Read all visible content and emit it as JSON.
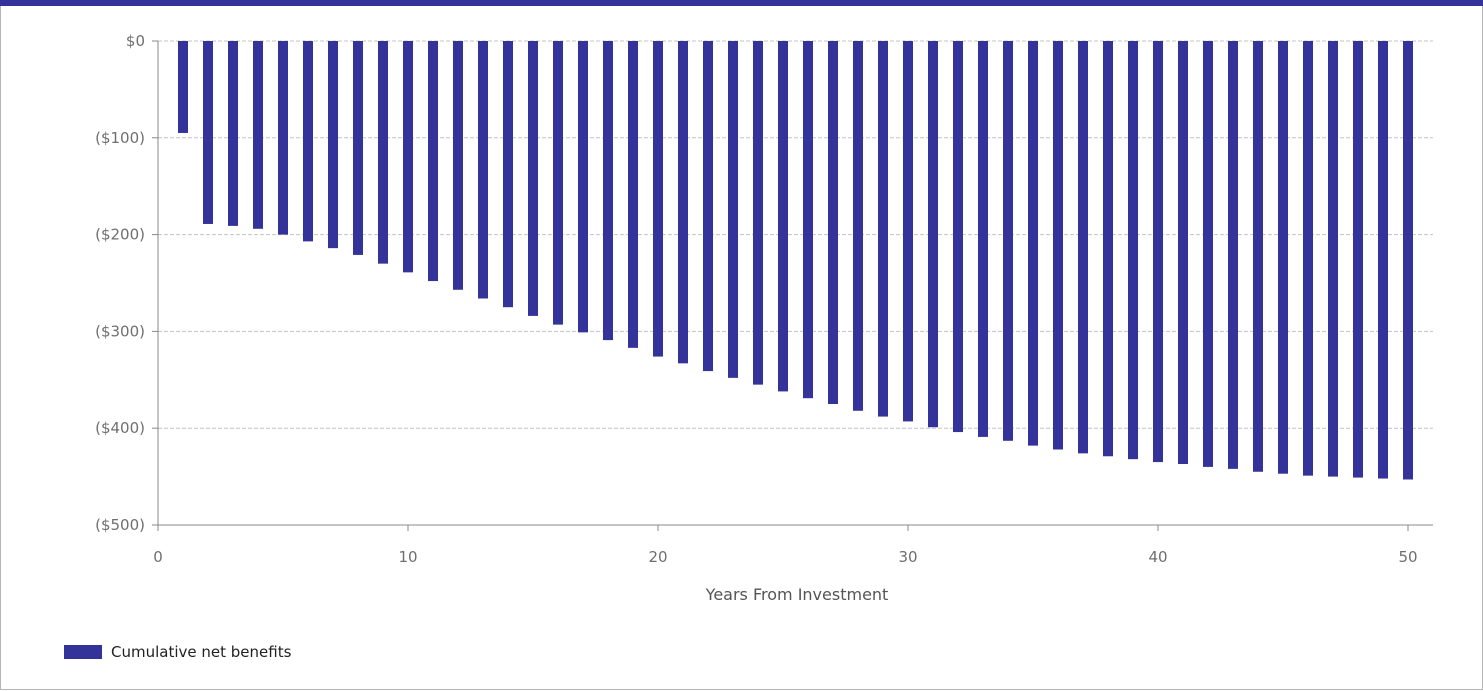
{
  "chart_data": {
    "type": "bar",
    "xlabel": "Years From Investment",
    "ylabel": "",
    "xlim": [
      0,
      51
    ],
    "ylim": [
      -500,
      0
    ],
    "x_ticks": [
      0,
      10,
      20,
      30,
      40,
      50
    ],
    "x_tick_labels": [
      "0",
      "10",
      "20",
      "30",
      "40",
      "50"
    ],
    "y_ticks": [
      0,
      -100,
      -200,
      -300,
      -400,
      -500
    ],
    "y_tick_labels": [
      "$0",
      "($100)",
      "($200)",
      "($300)",
      "($400)",
      "($500)"
    ],
    "grid": "horizontal-dashed",
    "legend_position": "bottom-left",
    "colors": {
      "bar": "#33339a",
      "axis": "#888888",
      "grid": "#c4c4c4",
      "top_bar": "#33339a"
    },
    "series": [
      {
        "name": "Cumulative net benefits",
        "x": [
          1,
          2,
          3,
          4,
          5,
          6,
          7,
          8,
          9,
          10,
          11,
          12,
          13,
          14,
          15,
          16,
          17,
          18,
          19,
          20,
          21,
          22,
          23,
          24,
          25,
          26,
          27,
          28,
          29,
          30,
          31,
          32,
          33,
          34,
          35,
          36,
          37,
          38,
          39,
          40,
          41,
          42,
          43,
          44,
          45,
          46,
          47,
          48,
          49,
          50
        ],
        "values": [
          -95,
          -189,
          -191,
          -194,
          -200,
          -207,
          -214,
          -221,
          -230,
          -239,
          -248,
          -257,
          -266,
          -275,
          -284,
          -293,
          -301,
          -309,
          -317,
          -326,
          -333,
          -341,
          -348,
          -355,
          -362,
          -369,
          -375,
          -382,
          -388,
          -393,
          -399,
          -404,
          -409,
          -413,
          -418,
          -422,
          -426,
          -429,
          -432,
          -435,
          -437,
          -440,
          -442,
          -445,
          -447,
          -449,
          -450,
          -451,
          -452,
          -453
        ]
      }
    ]
  }
}
